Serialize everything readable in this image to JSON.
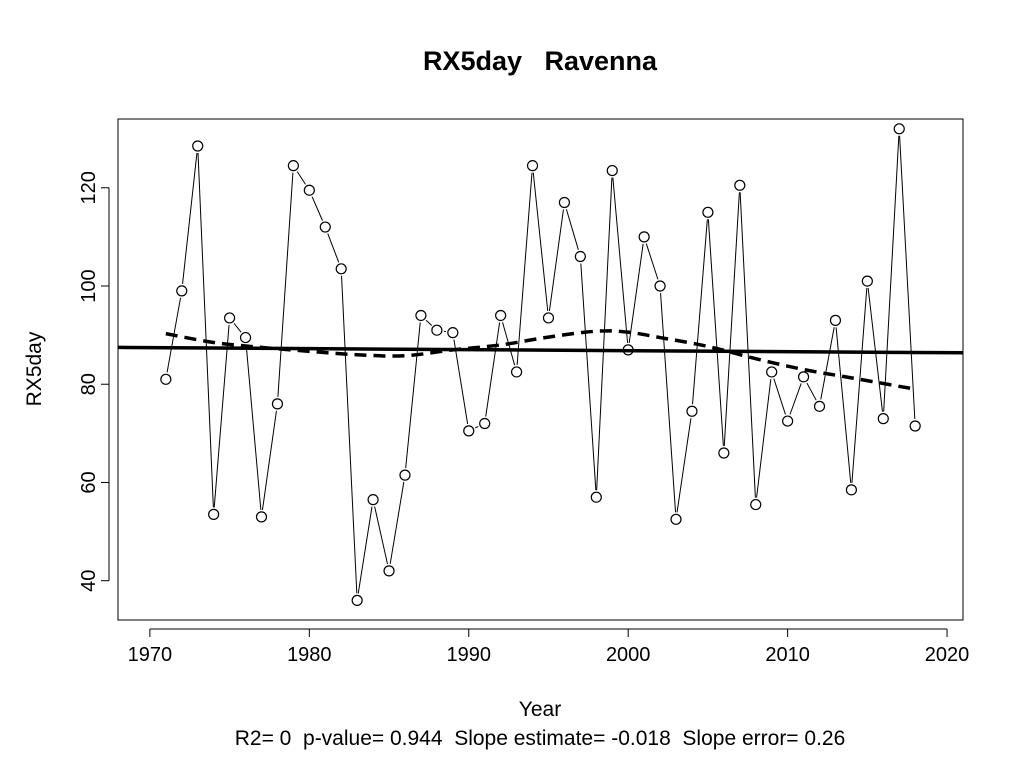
{
  "chart_data": {
    "type": "line",
    "title": "RX5day   Ravenna",
    "xlabel": "Year",
    "ylabel": "RX5day",
    "xlim": [
      1968,
      2021
    ],
    "ylim": [
      32,
      134
    ],
    "x_ticks": [
      1970,
      1980,
      1990,
      2000,
      2010,
      2020
    ],
    "y_ticks": [
      40,
      60,
      80,
      100,
      120
    ],
    "grid": false,
    "legend": "none",
    "series": [
      {
        "style": "line with open circle markers",
        "x": [
          1971,
          1972,
          1973,
          1974,
          1975,
          1976,
          1977,
          1978,
          1979,
          1980,
          1981,
          1982,
          1983,
          1984,
          1985,
          1986,
          1987,
          1988,
          1989,
          1990,
          1991,
          1992,
          1993,
          1994,
          1995,
          1996,
          1997,
          1998,
          1999,
          2000,
          2001,
          2002,
          2003,
          2004,
          2005,
          2006,
          2007,
          2008,
          2009,
          2010,
          2011,
          2012,
          2013,
          2014,
          2015,
          2016,
          2017,
          2018
        ],
        "y": [
          81,
          99,
          128.5,
          53.5,
          93.5,
          89.5,
          53,
          76,
          124.5,
          119.5,
          112,
          103.5,
          36,
          56.5,
          42,
          61.5,
          94,
          91,
          90.5,
          70.5,
          72,
          94,
          82.5,
          124.5,
          93.5,
          117,
          106,
          57,
          123.5,
          87,
          110,
          100,
          52.5,
          74.5,
          115,
          66,
          120.5,
          55.5,
          82.5,
          72.5,
          81.5,
          75.5,
          93,
          58.5,
          101,
          73,
          132,
          71.5
        ]
      },
      {
        "style": "solid linear trend",
        "x": [
          1968,
          2021
        ],
        "y": [
          87.5,
          86.4
        ]
      },
      {
        "style": "dashed smoothed trend",
        "x": [
          1971,
          1974,
          1977,
          1980,
          1983,
          1986,
          1989,
          1992,
          1995,
          1998,
          2000,
          2002,
          2005,
          2008,
          2011,
          2014,
          2018
        ],
        "y": [
          90.3,
          88.5,
          87.5,
          86.7,
          86,
          85.8,
          87,
          88,
          89.6,
          90.8,
          90.6,
          89.5,
          87.7,
          85.2,
          83,
          81.3,
          79
        ]
      }
    ],
    "stats_text": "R2= 0  p-value= 0.944  Slope estimate= -0.018  Slope error= 0.26",
    "colors": {
      "line": "#000000",
      "background": "#ffffff"
    }
  }
}
